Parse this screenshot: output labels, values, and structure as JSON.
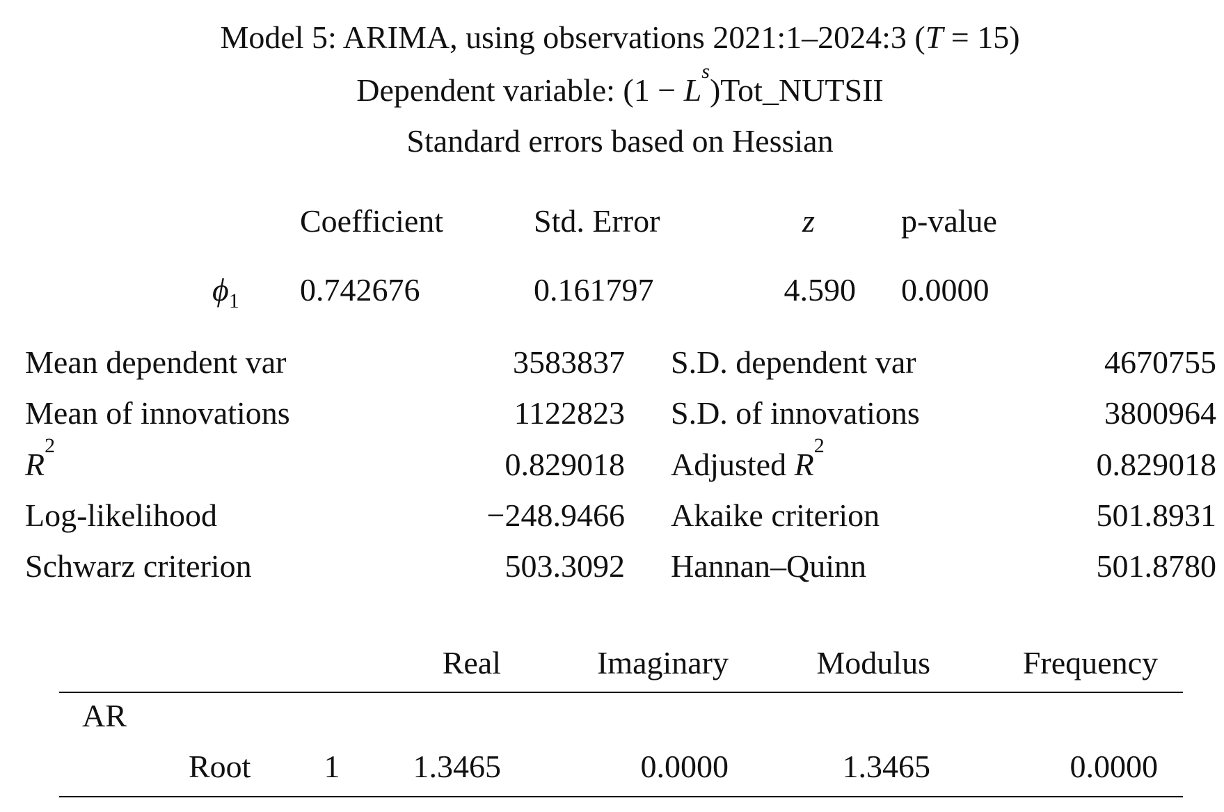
{
  "header": {
    "title": [
      {
        "t": "Model 5: ARIMA, using observations 2021:1–2024:3 ("
      },
      {
        "t": "T",
        "i": true
      },
      {
        "t": " = 15)"
      }
    ],
    "dependent": [
      {
        "t": "Dependent variable: (1 − "
      },
      {
        "t": "L",
        "i": true
      },
      {
        "t": "s",
        "i": true,
        "sup": true
      },
      {
        "t": ")Tot_NUTSII"
      }
    ],
    "std_errors": "Standard errors based on Hessian"
  },
  "coef_table": {
    "columns": [
      "Coefficient",
      "Std. Error",
      "z",
      "p-value"
    ],
    "rows": [
      {
        "name": [
          {
            "t": "ϕ",
            "i": true
          },
          {
            "t": "1",
            "sub": true
          }
        ],
        "values": [
          "0.742676",
          "0.161797",
          "4.590",
          "0.0000"
        ]
      }
    ]
  },
  "stats": [
    {
      "label": [
        {
          "t": "Mean dependent var"
        }
      ],
      "value": "3583837",
      "label2": [
        {
          "t": "S.D. dependent var"
        }
      ],
      "value2": "4670755"
    },
    {
      "label": [
        {
          "t": "Mean of innovations"
        }
      ],
      "value": "1122823",
      "label2": [
        {
          "t": "S.D. of innovations"
        }
      ],
      "value2": "3800964"
    },
    {
      "label": [
        {
          "t": "R",
          "i": true
        },
        {
          "t": "2",
          "sup": true
        }
      ],
      "value": "0.829018",
      "label2": [
        {
          "t": "Adjusted "
        },
        {
          "t": "R",
          "i": true
        },
        {
          "t": "2",
          "sup": true
        }
      ],
      "value2": "0.829018"
    },
    {
      "label": [
        {
          "t": "Log-likelihood"
        }
      ],
      "value": "−248.9466",
      "label2": [
        {
          "t": "Akaike criterion"
        }
      ],
      "value2": "501.8931"
    },
    {
      "label": [
        {
          "t": "Schwarz criterion"
        }
      ],
      "value": "503.3092",
      "label2": [
        {
          "t": "Hannan–Quinn"
        }
      ],
      "value2": "501.8780"
    }
  ],
  "roots": {
    "columns": [
      "Real",
      "Imaginary",
      "Modulus",
      "Frequency"
    ],
    "group": "AR",
    "rows": [
      {
        "label": "Root",
        "index": "1",
        "values": [
          "1.3465",
          "0.0000",
          "1.3465",
          "0.0000"
        ]
      }
    ]
  }
}
